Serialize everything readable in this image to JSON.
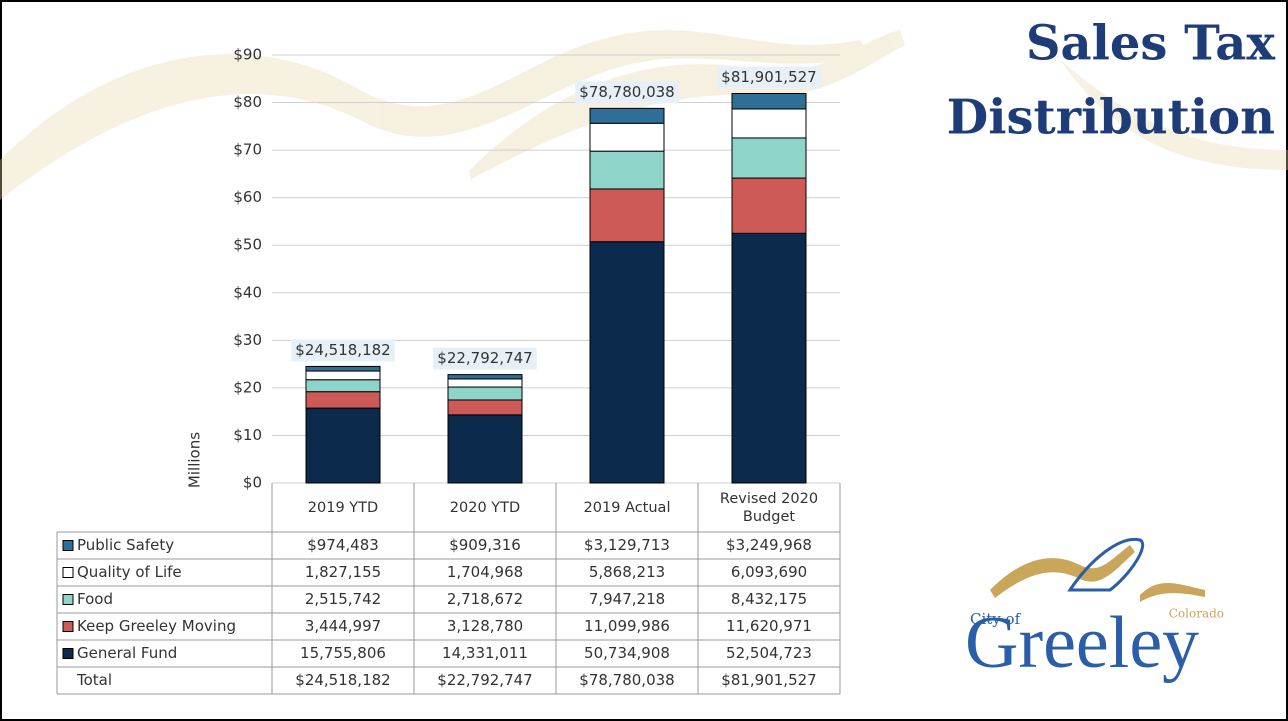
{
  "chart_data": {
    "type": "stacked_bar",
    "title": "Sales Tax Distribution",
    "y_label": "Millions",
    "categories": [
      "2019 YTD",
      "2020 YTD",
      "2019 Actual",
      "Revised 2020 Budget"
    ],
    "series": [
      {
        "name": "Public Safety",
        "color": "#2f6e96",
        "values": [
          0.974483,
          0.909316,
          3.129713,
          3.249968
        ],
        "value_labels": [
          "$974,483",
          "$909,316",
          "$3,129,713",
          "$3,249,968"
        ]
      },
      {
        "name": "Quality of Life",
        "color": "#ffffff",
        "values": [
          1.827155,
          1.704968,
          5.868213,
          6.09369
        ],
        "value_labels": [
          "1,827,155",
          "1,704,968",
          "5,868,213",
          "6,093,690"
        ]
      },
      {
        "name": "Food",
        "color": "#8fd4c8",
        "values": [
          2.515742,
          2.718672,
          7.947218,
          8.432175
        ],
        "value_labels": [
          "2,515,742",
          "2,718,672",
          "7,947,218",
          "8,432,175"
        ]
      },
      {
        "name": "Keep Greeley Moving",
        "color": "#cd5a57",
        "values": [
          3.444997,
          3.12878,
          11.099986,
          11.620971
        ],
        "value_labels": [
          "3,444,997",
          "3,128,780",
          "11,099,986",
          "11,620,971"
        ]
      },
      {
        "name": "General Fund",
        "color": "#0c2a4c",
        "values": [
          15.755806,
          14.331011,
          50.734908,
          52.504723
        ],
        "value_labels": [
          "15,755,806",
          "14,331,011",
          "50,734,908",
          "52,504,723"
        ]
      }
    ],
    "totals": {
      "name": "Total",
      "values": [
        24.518182,
        22.792747,
        78.780038,
        81.901527
      ],
      "value_labels": [
        "$24,518,182",
        "$22,792,747",
        "$78,780,038",
        "$81,901,527"
      ]
    },
    "ylim": [
      0,
      90
    ],
    "yticks": [
      {
        "value": 0,
        "label": "$0"
      },
      {
        "value": 10,
        "label": "$10"
      },
      {
        "value": 20,
        "label": "$20"
      },
      {
        "value": 30,
        "label": "$30"
      },
      {
        "value": 40,
        "label": "$40"
      },
      {
        "value": 50,
        "label": "$50"
      },
      {
        "value": 60,
        "label": "$60"
      },
      {
        "value": 70,
        "label": "$70"
      },
      {
        "value": 80,
        "label": "$80"
      },
      {
        "value": 90,
        "label": "$90"
      }
    ],
    "grid": true
  },
  "logo": {
    "prefix": "City of",
    "name": "Greeley",
    "state": "Colorado"
  }
}
